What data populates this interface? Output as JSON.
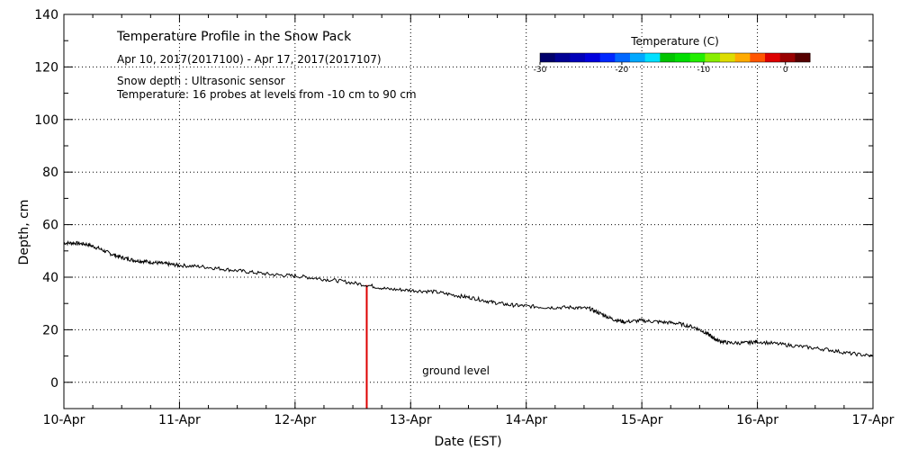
{
  "chart_data": {
    "type": "line",
    "title": "Temperature Profile in the Snow Pack",
    "subtitle": "Apr 10, 2017(2017100) - Apr 17, 2017(2017107)",
    "notes": [
      "Snow depth : Ultrasonic sensor",
      "Temperature: 16 probes at levels from -10 cm to 90 cm"
    ],
    "xlabel": "Date (EST)",
    "ylabel": "Depth, cm",
    "x_ticks": [
      "10-Apr",
      "11-Apr",
      "12-Apr",
      "13-Apr",
      "14-Apr",
      "15-Apr",
      "16-Apr",
      "17-Apr"
    ],
    "xlim": [
      0,
      7
    ],
    "ylim": [
      -10,
      140
    ],
    "y_ticks": [
      0,
      20,
      40,
      60,
      80,
      100,
      120,
      140
    ],
    "grid": true,
    "series": [
      {
        "name": "Snow depth",
        "color": "#000000",
        "x": [
          0,
          0.1,
          0.2,
          0.3,
          0.4,
          0.5,
          0.6,
          0.7,
          0.8,
          0.9,
          1.0,
          1.2,
          1.4,
          1.6,
          1.8,
          2.0,
          2.2,
          2.4,
          2.62,
          2.8,
          3.0,
          3.2,
          3.4,
          3.55,
          3.7,
          3.85,
          4.0,
          4.2,
          4.4,
          4.55,
          4.65,
          4.75,
          4.85,
          5.0,
          5.15,
          5.3,
          5.45,
          5.55,
          5.6,
          5.65,
          5.75,
          5.9,
          6.0,
          6.2,
          6.4,
          6.6,
          6.8,
          7.0
        ],
        "y": [
          53,
          53,
          52.5,
          51,
          49,
          47.5,
          46.5,
          46,
          45.5,
          45,
          44.5,
          44,
          43,
          42,
          41,
          40.5,
          39.5,
          38.5,
          37,
          35.5,
          35,
          34.5,
          33,
          32,
          30.5,
          29.5,
          29,
          28.5,
          28.5,
          28,
          26,
          24,
          23,
          23.5,
          23,
          22.5,
          21,
          19,
          17.5,
          16,
          15,
          15,
          15.5,
          14.5,
          13.5,
          12.5,
          11,
          10
        ]
      }
    ],
    "ground_bar": {
      "x": 2.62,
      "y_from": -10,
      "y_to": 37,
      "color": "#dd0000"
    },
    "annotations": [
      {
        "text": "ground level",
        "x": 3.1,
        "y": 3
      }
    ],
    "colorbar": {
      "title": "Temperature (C)",
      "min": -30,
      "max": 3,
      "ticks": [
        -30,
        -20,
        -10,
        0
      ],
      "tick_labels": [
        "-30",
        "-20",
        "-10",
        "0"
      ],
      "colors": [
        "#00006a",
        "#000094",
        "#0000b8",
        "#0000dd",
        "#0028ff",
        "#0068ff",
        "#00a8ff",
        "#00e0ff",
        "#00c400",
        "#00dd00",
        "#22ee00",
        "#88ee00",
        "#dddd00",
        "#ffaa00",
        "#ff5500",
        "#dd0000",
        "#990000",
        "#550000"
      ]
    }
  }
}
